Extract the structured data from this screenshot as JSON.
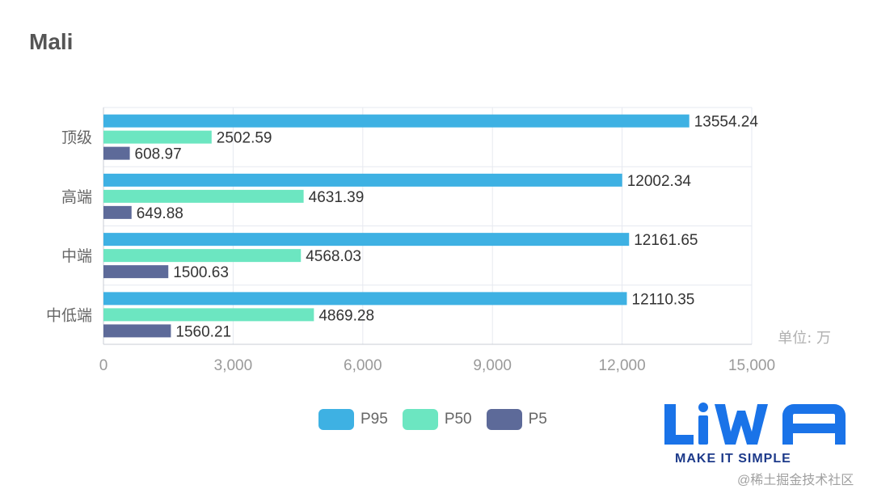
{
  "chart_data": {
    "type": "bar",
    "orientation": "horizontal",
    "title": "Mali",
    "unit_label": "单位: 万",
    "categories": [
      "顶级",
      "高端",
      "中端",
      "中低端"
    ],
    "series": [
      {
        "name": "P95",
        "color": "#3eb1e3",
        "values": [
          13554.24,
          12002.34,
          12161.65,
          12110.35
        ]
      },
      {
        "name": "P50",
        "color": "#6ce6c1",
        "values": [
          2502.59,
          4631.39,
          4568.03,
          4869.28
        ]
      },
      {
        "name": "P5",
        "color": "#5d6a99",
        "values": [
          608.97,
          649.88,
          1500.63,
          1560.21
        ]
      }
    ],
    "xlim": [
      0,
      15000
    ],
    "xticks": [
      0,
      3000,
      6000,
      9000,
      12000,
      15000
    ],
    "xtick_labels": [
      "0",
      "3,000",
      "6,000",
      "9,000",
      "12,000",
      "15,000"
    ],
    "value_labels": [
      [
        "13554.24",
        "12002.34",
        "12161.65",
        "12110.35"
      ],
      [
        "2502.59",
        "4631.39",
        "4568.03",
        "4869.28"
      ],
      [
        "608.97",
        "649.88",
        "1500.63",
        "1560.21"
      ]
    ],
    "grid": true,
    "legend_position": "bottom-center"
  },
  "logo": {
    "text": "MAKE IT SIMPLE",
    "brand": "LiWA"
  },
  "watermark": "@稀土掘金技术社区",
  "legend": [
    {
      "name": "P95",
      "color": "#3eb1e3"
    },
    {
      "name": "P50",
      "color": "#6ce6c1"
    },
    {
      "name": "P5",
      "color": "#5d6a99"
    }
  ]
}
